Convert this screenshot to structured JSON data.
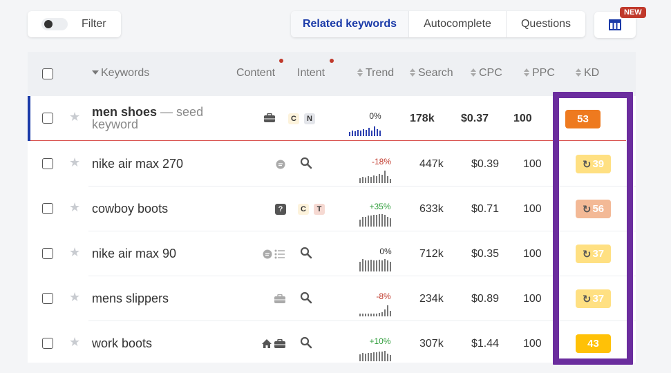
{
  "toolbar": {
    "filter_label": "Filter",
    "tabs": [
      {
        "label": "Related keywords",
        "active": true
      },
      {
        "label": "Autocomplete",
        "active": false
      },
      {
        "label": "Questions",
        "active": false
      }
    ],
    "new_badge": "NEW",
    "columns_icon": "columns-icon"
  },
  "table": {
    "headers": {
      "keywords": "Keywords",
      "content": "Content",
      "intent": "Intent",
      "trend": "Trend",
      "search": "Search",
      "cpc": "CPC",
      "ppc": "PPC",
      "kd": "KD"
    },
    "rows": [
      {
        "keyword": "men shoes",
        "seed_suffix": " — seed",
        "seed_line2": "keyword",
        "trend": "0%",
        "search": "178k",
        "cpc": "$0.37",
        "ppc": "100",
        "kd": "53",
        "kd_color": "#ee7a1f",
        "intent_tags": [
          "C",
          "N"
        ],
        "bars": [
          6,
          8,
          7,
          9,
          8,
          10,
          9,
          12,
          8,
          14,
          10,
          8
        ]
      },
      {
        "keyword": "nike air max 270",
        "trend": "-18%",
        "search": "447k",
        "cpc": "$0.39",
        "ppc": "100",
        "kd": "39",
        "kd_color": "#ffe082",
        "bars": [
          7,
          9,
          8,
          10,
          9,
          11,
          10,
          13,
          12,
          18,
          10,
          6
        ]
      },
      {
        "keyword": "cowboy boots",
        "trend": "+35%",
        "search": "633k",
        "cpc": "$0.71",
        "ppc": "100",
        "kd": "56",
        "kd_color": "#f3b996",
        "intent_tags": [
          "C",
          "T"
        ],
        "bars": [
          10,
          14,
          14,
          16,
          16,
          17,
          17,
          18,
          18,
          17,
          14,
          12
        ]
      },
      {
        "keyword": "nike air max 90",
        "trend": "0%",
        "search": "712k",
        "cpc": "$0.35",
        "ppc": "100",
        "kd": "37",
        "kd_color": "#ffe082",
        "bars": [
          14,
          18,
          16,
          16,
          17,
          16,
          16,
          17,
          16,
          18,
          16,
          14
        ]
      },
      {
        "keyword": "mens slippers",
        "trend": "-8%",
        "search": "234k",
        "cpc": "$0.89",
        "ppc": "100",
        "kd": "37",
        "kd_color": "#ffe082",
        "bars": [
          4,
          4,
          4,
          4,
          4,
          4,
          4,
          5,
          6,
          10,
          16,
          8
        ]
      },
      {
        "keyword": "work boots",
        "trend": "+10%",
        "search": "307k",
        "cpc": "$1.44",
        "ppc": "100",
        "kd": "43",
        "kd_color": "#ffc107",
        "bars": [
          10,
          12,
          11,
          12,
          12,
          13,
          13,
          14,
          14,
          15,
          11,
          9
        ]
      }
    ]
  },
  "colors": {
    "accent": "#1a3aa8",
    "highlight": "#6b2d9e",
    "trend_negative": "#c0392b",
    "trend_positive": "#2e9c3a"
  }
}
